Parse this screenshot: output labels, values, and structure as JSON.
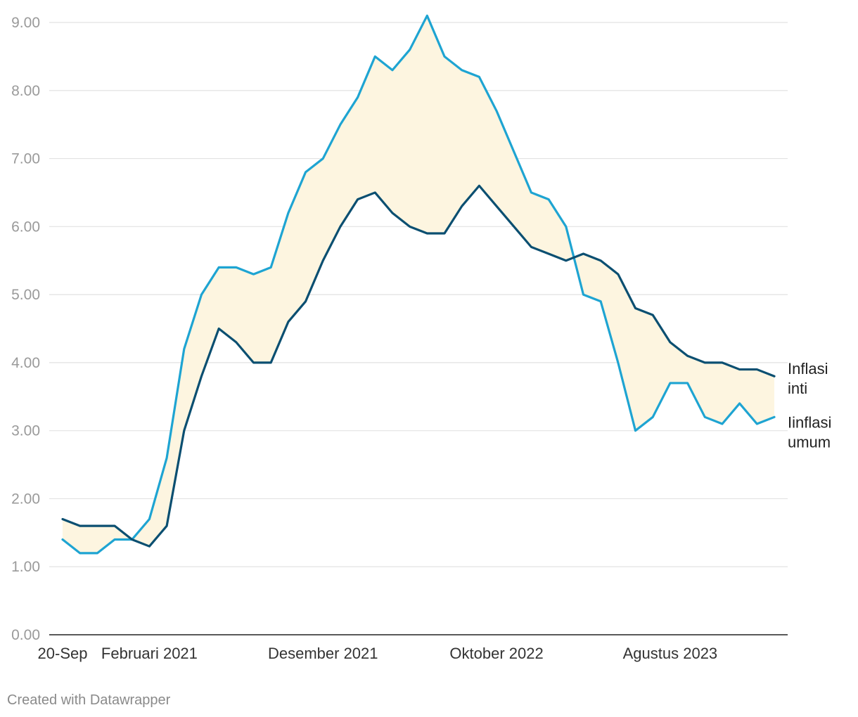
{
  "chart_data": {
    "type": "line",
    "y_ticks": [
      "0.00",
      "1.00",
      "2.00",
      "3.00",
      "4.00",
      "5.00",
      "6.00",
      "7.00",
      "8.00",
      "9.00"
    ],
    "ylim": [
      0,
      9
    ],
    "x_tick_labels": [
      {
        "index": 0,
        "label": "20-Sep"
      },
      {
        "index": 5,
        "label": "Februari 2021"
      },
      {
        "index": 15,
        "label": "Desember 2021"
      },
      {
        "index": 25,
        "label": "Oktober 2022"
      },
      {
        "index": 35,
        "label": "Agustus 2023"
      }
    ],
    "grid": true,
    "range_fill_color": "#fdf5e0",
    "series": [
      {
        "name_lines": [
          "Inflasi",
          "inti"
        ],
        "color": "#0b4f71",
        "values": [
          1.7,
          1.6,
          1.6,
          1.6,
          1.4,
          1.3,
          1.6,
          3.0,
          3.8,
          4.5,
          4.3,
          4.0,
          4.0,
          4.6,
          4.9,
          5.5,
          6.0,
          6.4,
          6.5,
          6.2,
          6.0,
          5.9,
          5.9,
          6.3,
          6.6,
          6.3,
          6.0,
          5.7,
          5.6,
          5.5,
          5.6,
          5.5,
          5.3,
          4.8,
          4.7,
          4.3,
          4.1,
          4.0,
          4.0,
          3.9,
          3.9,
          3.8
        ]
      },
      {
        "name_lines": [
          "Iinflasi",
          "umum"
        ],
        "color": "#1ea4d2",
        "values": [
          1.4,
          1.2,
          1.2,
          1.4,
          1.4,
          1.7,
          2.6,
          4.2,
          5.0,
          5.4,
          5.4,
          5.3,
          5.4,
          6.2,
          6.8,
          7.0,
          7.5,
          7.9,
          8.5,
          8.3,
          8.6,
          9.1,
          8.5,
          8.3,
          8.2,
          7.7,
          7.1,
          6.5,
          6.4,
          6.0,
          5.0,
          4.9,
          4.0,
          3.0,
          3.2,
          3.7,
          3.7,
          3.2,
          3.1,
          3.4,
          3.1,
          3.2
        ]
      }
    ]
  },
  "footer": {
    "credit": "Created with Datawrapper"
  }
}
